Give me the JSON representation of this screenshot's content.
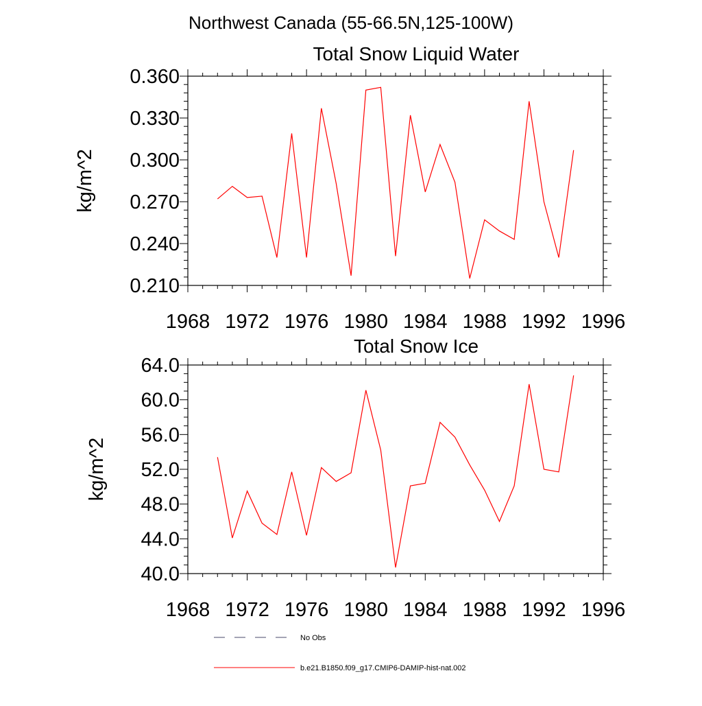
{
  "figure": {
    "title": "Northwest Canada (55-66.5N,125-100W)"
  },
  "chart_data": [
    {
      "type": "line",
      "title": "Total Snow Liquid Water",
      "xlabel": "",
      "ylabel": "kg/m^2",
      "xlim": [
        1968,
        1996
      ],
      "ylim": [
        0.21,
        0.36
      ],
      "xticks": [
        "1968",
        "1972",
        "1976",
        "1980",
        "1984",
        "1988",
        "1992",
        "1996"
      ],
      "yticks": [
        "0.210",
        "0.240",
        "0.270",
        "0.300",
        "0.330",
        "0.360"
      ],
      "series": [
        {
          "name": "b.e21.B1850.f09_g17.CMIP6-DAMIP-hist-nat.002",
          "color": "#ff0000",
          "x": [
            1970,
            1971,
            1972,
            1973,
            1974,
            1975,
            1976,
            1977,
            1978,
            1979,
            1980,
            1981,
            1982,
            1983,
            1984,
            1985,
            1986,
            1987,
            1988,
            1989,
            1990,
            1991,
            1992,
            1993,
            1994
          ],
          "y": [
            0.272,
            0.281,
            0.273,
            0.274,
            0.23,
            0.319,
            0.23,
            0.337,
            0.283,
            0.217,
            0.35,
            0.352,
            0.231,
            0.332,
            0.277,
            0.311,
            0.284,
            0.215,
            0.257,
            0.249,
            0.243,
            0.342,
            0.27,
            0.23,
            0.307
          ]
        }
      ]
    },
    {
      "type": "line",
      "title": "Total Snow Ice",
      "xlabel": "",
      "ylabel": "kg/m^2",
      "xlim": [
        1968,
        1996
      ],
      "ylim": [
        40,
        64
      ],
      "xticks": [
        "1968",
        "1972",
        "1976",
        "1980",
        "1984",
        "1988",
        "1992",
        "1996"
      ],
      "yticks": [
        "40.0",
        "44.0",
        "48.0",
        "52.0",
        "56.0",
        "60.0",
        "64.0"
      ],
      "series": [
        {
          "name": "b.e21.B1850.f09_g17.CMIP6-DAMIP-hist-nat.002",
          "color": "#ff0000",
          "x": [
            1970,
            1971,
            1972,
            1973,
            1974,
            1975,
            1976,
            1977,
            1978,
            1979,
            1980,
            1981,
            1982,
            1983,
            1984,
            1985,
            1986,
            1987,
            1988,
            1989,
            1990,
            1991,
            1992,
            1993,
            1994
          ],
          "y": [
            53.4,
            44.1,
            49.5,
            45.8,
            44.5,
            51.7,
            44.4,
            52.2,
            50.6,
            51.6,
            61.1,
            54.2,
            40.7,
            50.1,
            50.4,
            57.4,
            55.7,
            52.5,
            49.6,
            46.0,
            50.1,
            61.8,
            52.0,
            51.7,
            62.8
          ]
        }
      ]
    }
  ],
  "legend": {
    "placement": "bottom",
    "items": [
      {
        "label": "No Obs",
        "color": "#4a4a6a",
        "dash": true
      },
      {
        "label": "b.e21.B1850.f09_g17.CMIP6-DAMIP-hist-nat.002",
        "color": "#ff0000",
        "dash": false
      }
    ]
  }
}
